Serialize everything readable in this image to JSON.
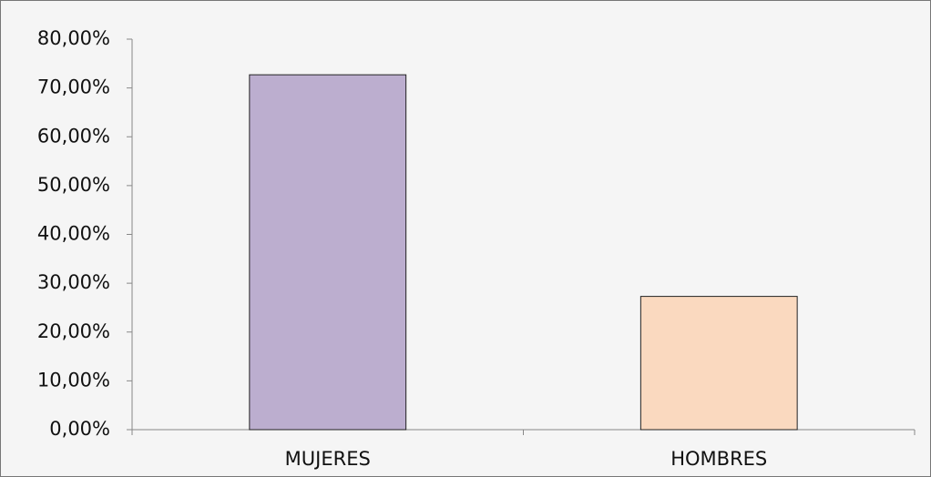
{
  "chart_data": {
    "type": "bar",
    "categories": [
      "MUJERES",
      "HOMBRES"
    ],
    "values": [
      72.7,
      27.3
    ],
    "colors": [
      "#bcaecf",
      "#fad9bf"
    ],
    "ylim": [
      0,
      80
    ],
    "yticks": [
      {
        "value": 0,
        "label": "0,00%"
      },
      {
        "value": 10,
        "label": "10,00%"
      },
      {
        "value": 20,
        "label": "20,00%"
      },
      {
        "value": 30,
        "label": "30,00%"
      },
      {
        "value": 40,
        "label": "40,00%"
      },
      {
        "value": 50,
        "label": "50,00%"
      },
      {
        "value": 60,
        "label": "60,00%"
      },
      {
        "value": 70,
        "label": "70,00%"
      },
      {
        "value": 80,
        "label": "80,00%"
      }
    ],
    "grid": false
  }
}
